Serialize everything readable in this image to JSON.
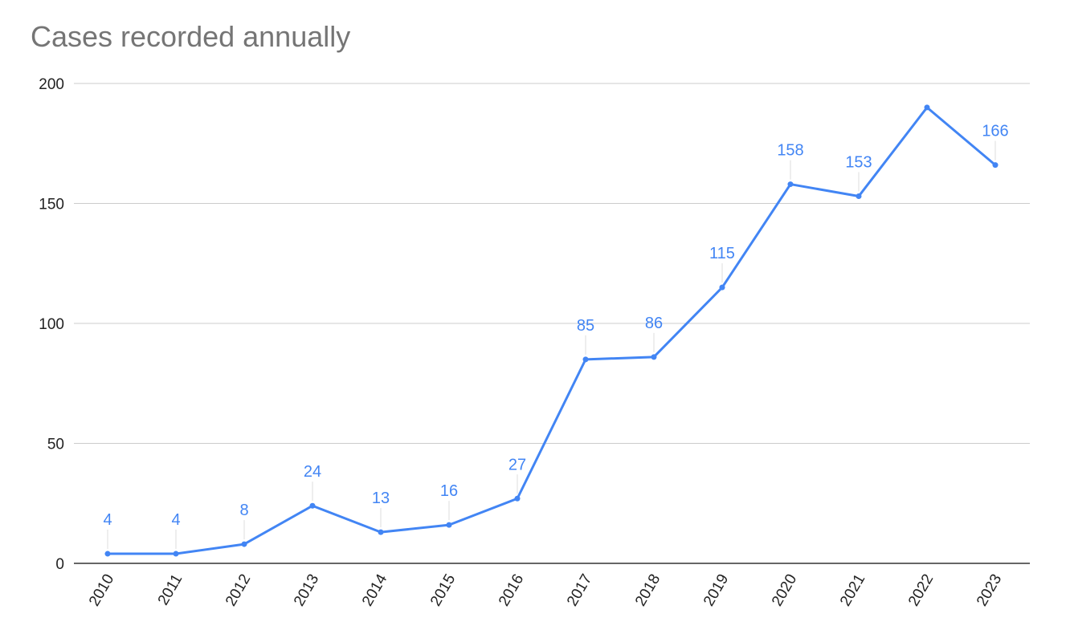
{
  "chart_data": {
    "type": "line",
    "title": "Cases recorded annually",
    "xlabel": "",
    "ylabel": "",
    "ylim": [
      0,
      200
    ],
    "yticks": [
      "0",
      "50",
      "100",
      "150",
      "200"
    ],
    "grid": true,
    "legend": "none",
    "line_color": "#4285f4",
    "x": [
      "2010",
      "2011",
      "2012",
      "2013",
      "2014",
      "2015",
      "2016",
      "2017",
      "2018",
      "2019",
      "2020",
      "2021",
      "2022",
      "2023"
    ],
    "series": [
      {
        "values": [
          4,
          4,
          8,
          24,
          13,
          16,
          27,
          85,
          86,
          115,
          158,
          153,
          190,
          166
        ],
        "data_labels": [
          "4",
          "4",
          "8",
          "24",
          "13",
          "16",
          "27",
          "85",
          "86",
          "115",
          "158",
          "153",
          null,
          "166"
        ]
      }
    ]
  }
}
